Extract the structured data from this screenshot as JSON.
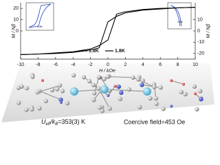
{
  "chart_data": {
    "type": "line",
    "xlabel": "H / kOe",
    "ylabel": "M / Nβ",
    "y2label": "M / Nβ",
    "x": [
      -10,
      -8,
      -6,
      -4,
      -2,
      -1,
      0,
      1,
      2,
      4,
      6,
      8,
      10
    ],
    "series": [
      {
        "name": "1.8K",
        "color": "#000000",
        "values": [
          -21,
          -20.5,
          -20,
          -19,
          -17,
          -15,
          8,
          13,
          16,
          18.5,
          19.5,
          20.5,
          21
        ]
      },
      {
        "name": "1.8K",
        "color": "#000000",
        "values": [
          -21,
          -20.5,
          -19.5,
          -18.5,
          -16,
          -13,
          -8,
          15,
          17,
          19,
          20,
          20.5,
          21
        ]
      }
    ],
    "xlim": [
      -10,
      10
    ],
    "xticks": [
      -10,
      -8,
      -6,
      -4,
      -2,
      0,
      2,
      4,
      6,
      8,
      10
    ],
    "ylim": [
      -25,
      25
    ],
    "yticks": [
      0,
      10,
      20
    ],
    "y2lim": [
      -25,
      25
    ],
    "y2ticks": [
      -20,
      -10,
      0,
      10
    ],
    "annotations": {
      "inset_left": "1.8K",
      "inset_right": "1.8K"
    },
    "caption": {
      "u": "U",
      "u_sub": "eff",
      "k": "/k",
      "k_sub": "B",
      "u_rest": "=353(3) K",
      "coercive": "Coercive field=453 Oe"
    }
  }
}
